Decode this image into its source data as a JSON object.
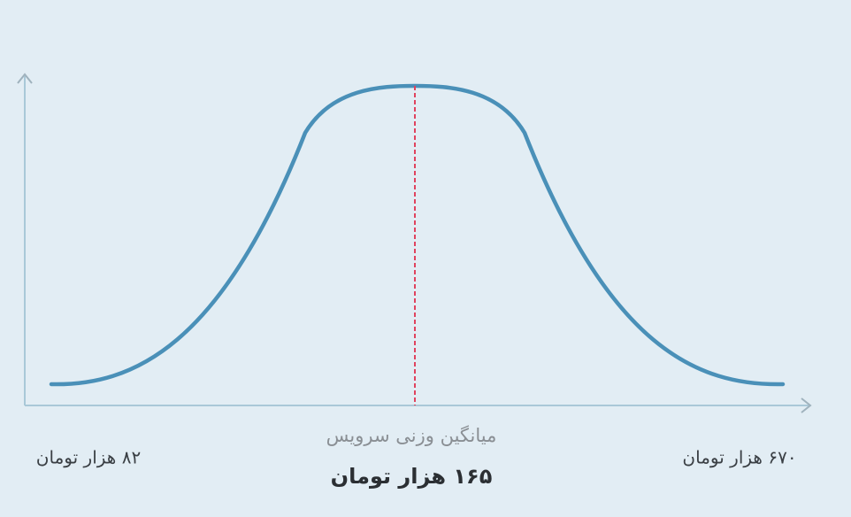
{
  "mean": {
    "caption": "میانگین وزنی سرویس",
    "value": "۱۶۵ هزار تومان"
  },
  "min_label": "۸۲ هزار تومان",
  "max_label": "۶۷۰ هزار تومان"
}
